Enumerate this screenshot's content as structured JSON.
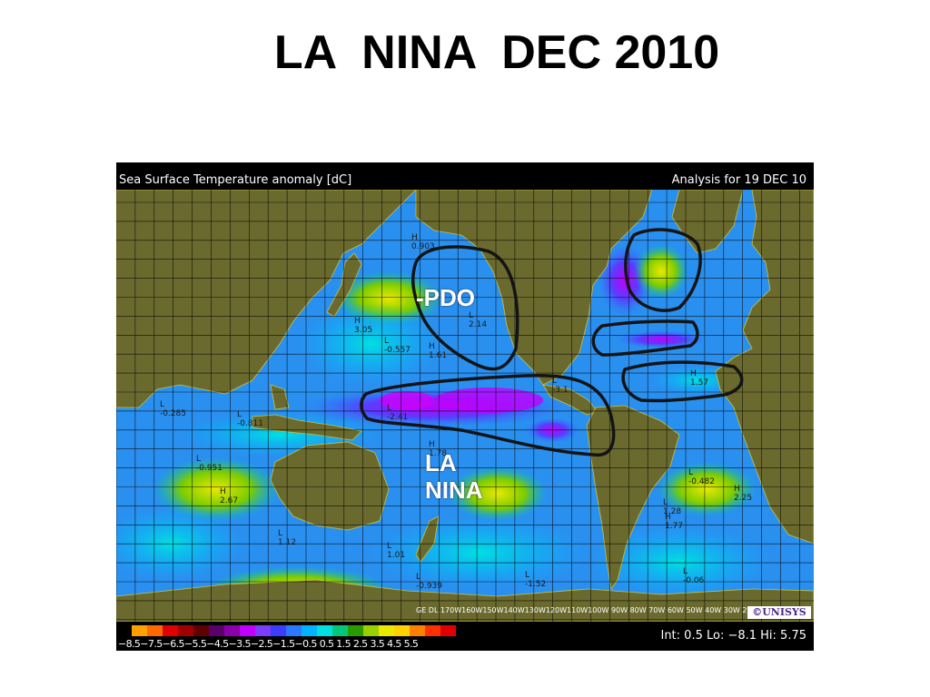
{
  "slide": {
    "title": "LA  NINA  DEC 2010"
  },
  "map": {
    "header_left": "Sea Surface Temperature anomaly [dC]",
    "header_right": "Analysis for 19 DEC 10",
    "labels": {
      "pdo": "-PDO",
      "la_nina": "LA\nNINA"
    },
    "logo": "©UNISYS",
    "lon_labels": "GE DL 170W160W150W140W130W120W110W100W 90W 80W 70W 60W 50W 40W 30W 20W 10W",
    "markers": [
      {
        "type": "H",
        "value": "0.903"
      },
      {
        "type": "H",
        "value": "3.05"
      },
      {
        "type": "L",
        "value": "-0.557"
      },
      {
        "type": "H",
        "value": "1.61"
      },
      {
        "type": "L",
        "value": "2.14"
      },
      {
        "type": "L",
        "value": "-0.285"
      },
      {
        "type": "L",
        "value": "-0.811"
      },
      {
        "type": "L",
        "value": "-2.41"
      },
      {
        "type": "L",
        "value": "-3.1"
      },
      {
        "type": "H",
        "value": "1.57"
      },
      {
        "type": "L",
        "value": "-0.951"
      },
      {
        "type": "H",
        "value": "1.78"
      },
      {
        "type": "H",
        "value": "2.67"
      },
      {
        "type": "L",
        "value": "-0.482"
      },
      {
        "type": "H",
        "value": "2.25"
      },
      {
        "type": "L",
        "value": "1.28"
      },
      {
        "type": "H",
        "value": "1.77"
      },
      {
        "type": "L",
        "value": "1.12"
      },
      {
        "type": "L",
        "value": "1.01"
      },
      {
        "type": "L",
        "value": "-0.939"
      },
      {
        "type": "L",
        "value": "-1.52"
      },
      {
        "type": "L",
        "value": "-0.06"
      }
    ]
  },
  "legend": {
    "colors": [
      "#ffa000",
      "#ff6a00",
      "#e00000",
      "#a00000",
      "#600000",
      "#5a006a",
      "#8a00aa",
      "#c000ff",
      "#7a3cff",
      "#3c3cff",
      "#2a78ff",
      "#00b4ff",
      "#00e0e0",
      "#00c878",
      "#2a9a00",
      "#9ad000",
      "#e8e800",
      "#ffd000",
      "#ff8000",
      "#ff3000",
      "#e00000"
    ],
    "ticks": "−8.5−7.5−6.5−5.5−4.5−3.5−2.5−1.5−0.5 0.5  1.5  2.5  3.5  4.5  5.5",
    "stats": "Int: 0.5  Lo: −8.1 Hi: 5.75",
    "interval": 0.5,
    "low": -8.1,
    "high": 5.75
  },
  "colors": {
    "land": "#6b6a2e",
    "ocean_base": "#2a8cf0",
    "grid": "#000000",
    "outline": "#141414"
  }
}
